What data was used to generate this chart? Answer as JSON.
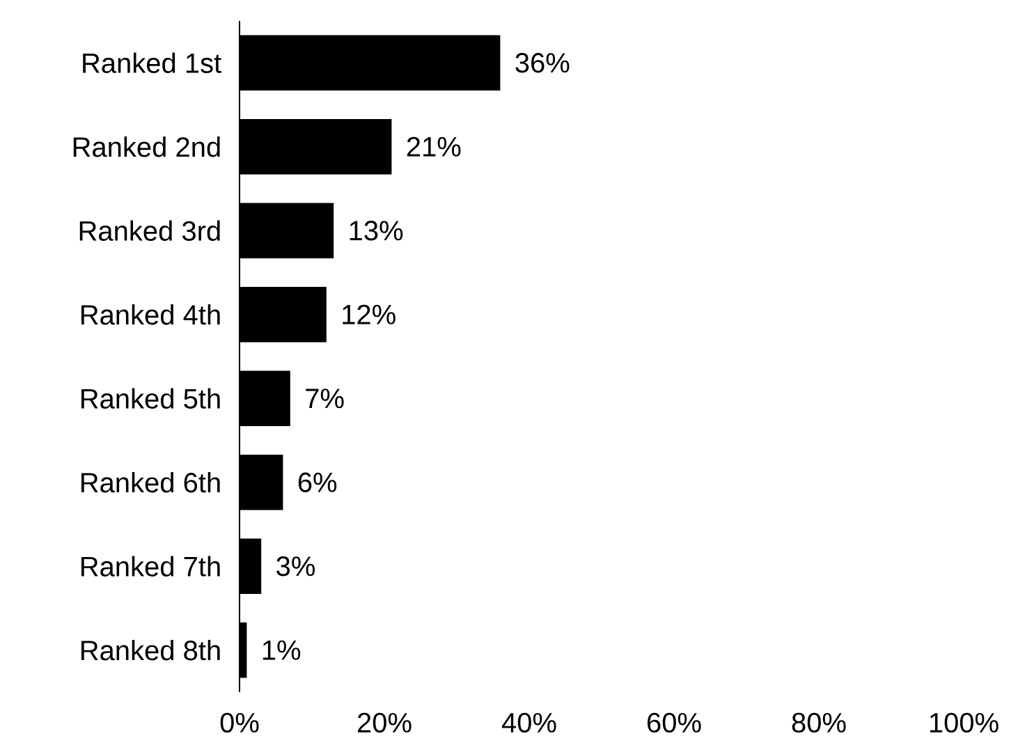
{
  "chart_data": {
    "type": "bar",
    "orientation": "horizontal",
    "categories": [
      "Ranked 1st",
      "Ranked 2nd",
      "Ranked 3rd",
      "Ranked 4th",
      "Ranked 5th",
      "Ranked 6th",
      "Ranked 7th",
      "Ranked 8th"
    ],
    "values": [
      36,
      21,
      13,
      12,
      7,
      6,
      3,
      1
    ],
    "value_labels": [
      "36%",
      "21%",
      "13%",
      "12%",
      "7%",
      "6%",
      "3%",
      "1%"
    ],
    "color": "#000000",
    "xlim": [
      0,
      100
    ],
    "xticks": [
      {
        "value": 0,
        "label": "0%"
      },
      {
        "value": 20,
        "label": "20%"
      },
      {
        "value": 40,
        "label": "40%"
      },
      {
        "value": 60,
        "label": "60%"
      },
      {
        "value": 80,
        "label": "80%"
      },
      {
        "value": 100,
        "label": "100%"
      }
    ]
  }
}
